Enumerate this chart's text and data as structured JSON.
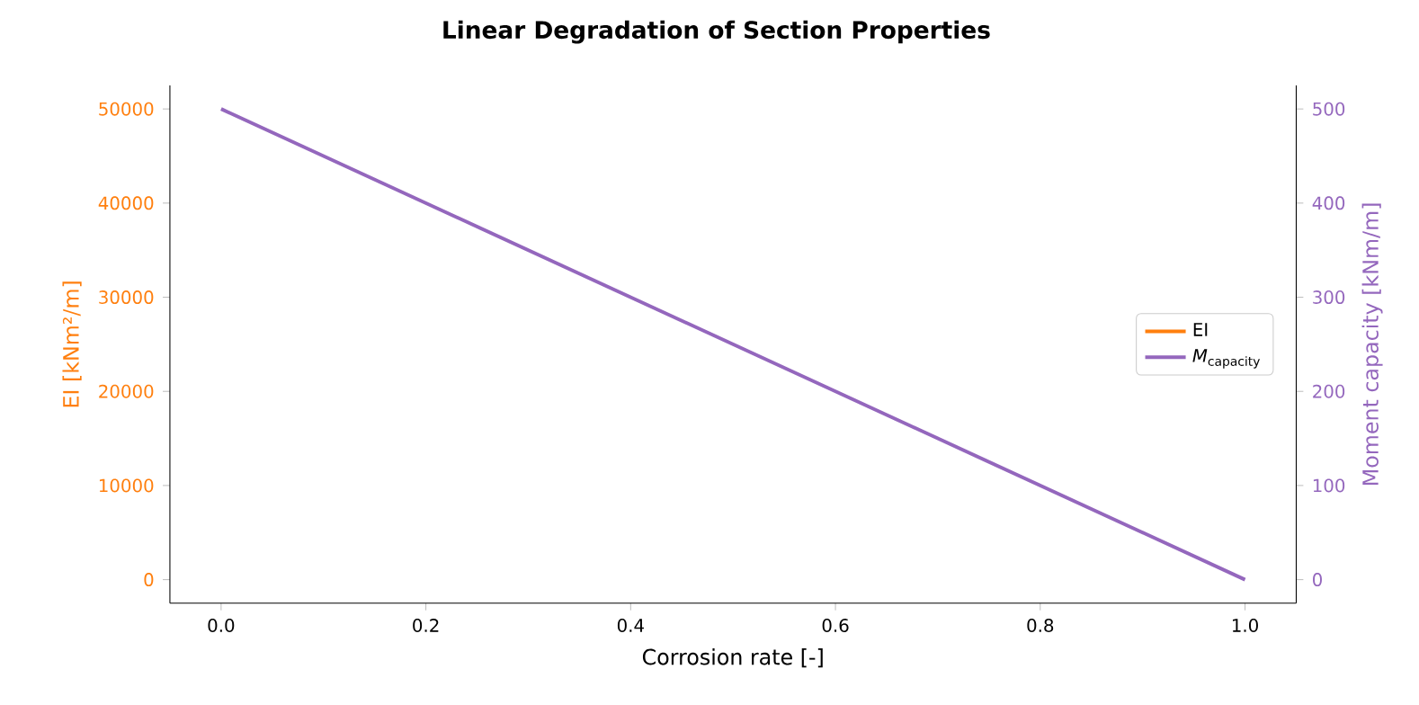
{
  "chart_data": {
    "type": "line",
    "title": "Linear Degradation of Section Properties",
    "xlabel": "Corrosion rate [-]",
    "ylabel": "EI [kNm²/m]",
    "y2label": "Moment capacity [kNm/m]",
    "x": [
      0,
      1
    ],
    "series": [
      {
        "name": "EI",
        "color": "#ff7f0e",
        "values": [
          null,
          null
        ]
      },
      {
        "name": "*M*$_{capacity}$",
        "color": "#9467bd",
        "values": [
          500,
          0
        ],
        "axis": "y2"
      }
    ],
    "xlim": [
      -0.05,
      1.05
    ],
    "xticks": [
      {
        "value": 0,
        "label": "0.0"
      },
      {
        "value": 0.2,
        "label": "0.2"
      },
      {
        "value": 0.4,
        "label": "0.4"
      },
      {
        "value": 0.6,
        "label": "0.6"
      },
      {
        "value": 0.8,
        "label": "0.8"
      },
      {
        "value": 1,
        "label": "1.0"
      }
    ],
    "ylim": [
      -2500,
      52500
    ],
    "yticks": [
      0,
      10000,
      20000,
      30000,
      40000,
      50000
    ],
    "y2lim": [
      -25,
      525
    ],
    "y2ticks": [
      0,
      100,
      200,
      300,
      400,
      500
    ],
    "legend": "right",
    "line_style": "solid"
  }
}
